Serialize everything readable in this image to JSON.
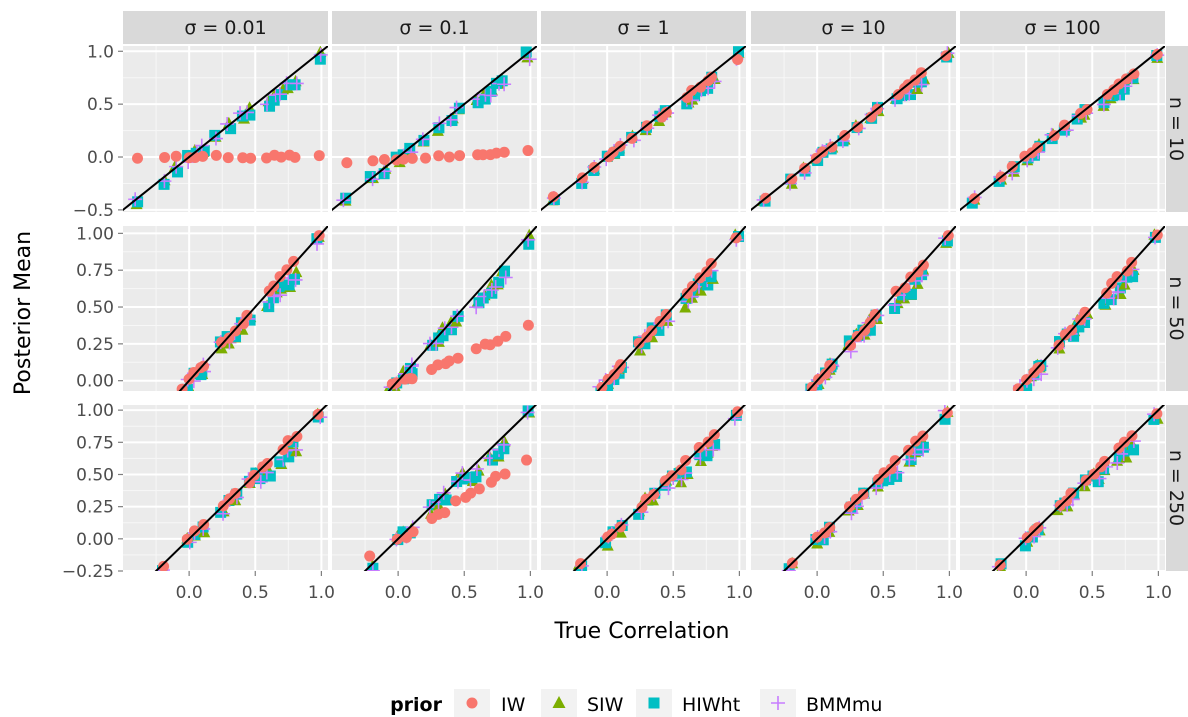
{
  "chart_data": {
    "type": "scatter",
    "xlabel": "True Correlation",
    "ylabel": "Posterior Mean",
    "col_facet_labels": [
      "σ = 0.01",
      "σ = 0.1",
      "σ = 1",
      "σ = 10",
      "σ = 100"
    ],
    "row_facet_labels": [
      "n = 10",
      "n = 50",
      "n = 250"
    ],
    "x_ticks": [
      0.0,
      0.5,
      1.0
    ],
    "x_tick_labels": [
      "0.0",
      "0.5",
      "1.0"
    ],
    "xlim": [
      -0.5,
      1.05
    ],
    "rows": [
      {
        "ylim": [
          -0.52,
          1.05
        ],
        "y_ticks": [
          -0.5,
          0.0,
          0.5,
          1.0
        ],
        "y_tick_labels": [
          "−0.5",
          "0.0",
          "0.5",
          "1.0"
        ]
      },
      {
        "ylim": [
          -0.07,
          1.05
        ],
        "y_ticks": [
          0.0,
          0.25,
          0.5,
          0.75,
          1.0
        ],
        "y_tick_labels": [
          "0.00",
          "0.25",
          "0.50",
          "0.75",
          "1.00"
        ]
      },
      {
        "ylim": [
          -0.25,
          1.04
        ],
        "y_ticks": [
          -0.25,
          0.0,
          0.25,
          0.5,
          0.75,
          1.0
        ],
        "y_tick_labels": [
          "−0.25",
          "0.00",
          "0.25",
          "0.50",
          "0.75",
          "1.00"
        ]
      }
    ],
    "reference_line": "y = x",
    "true_correlations": [
      [
        -0.4,
        -0.2,
        -0.1,
        0.0,
        0.05,
        0.1,
        0.2,
        0.3,
        0.4,
        0.45,
        0.6,
        0.65,
        0.7,
        0.75,
        0.8,
        0.98
      ],
      [
        -0.05,
        0.0,
        0.05,
        0.1,
        0.1,
        0.25,
        0.3,
        0.35,
        0.4,
        0.45,
        0.6,
        0.65,
        0.7,
        0.75,
        0.8,
        0.98
      ],
      [
        -0.2,
        0.0,
        0.05,
        0.1,
        0.25,
        0.3,
        0.35,
        0.45,
        0.5,
        0.55,
        0.6,
        0.7,
        0.75,
        0.8,
        0.98
      ]
    ],
    "series": [
      {
        "name": "IW",
        "color": "#F8766D",
        "shape": "circle",
        "sigma_offset": [
          [
            -0.02,
            0.0,
            0.005
          ],
          [
            -0.05,
            -0.025,
            -0.015
          ],
          [
            0.0,
            0.0,
            0.0
          ],
          [
            0.0,
            0.0,
            0.0
          ],
          [
            0.0,
            0.0,
            0.0
          ]
        ],
        "ifrac": [
          [
            1.0,
            0.0,
            0.0
          ],
          [
            0.9,
            0.6,
            0.35
          ],
          [
            0.05,
            0.02,
            0.0
          ],
          [
            0.02,
            0.01,
            0.0
          ],
          [
            0.0,
            0.0,
            0.0
          ]
        ]
      },
      {
        "name": "SIW",
        "color": "#7CAE00",
        "shape": "triangle"
      },
      {
        "name": "HIWht",
        "color": "#00BFC4",
        "shape": "square"
      },
      {
        "name": "BMMmu",
        "color": "#C77CFF",
        "shape": "plus"
      }
    ],
    "legend": {
      "title": "prior",
      "position": "bottom"
    }
  }
}
